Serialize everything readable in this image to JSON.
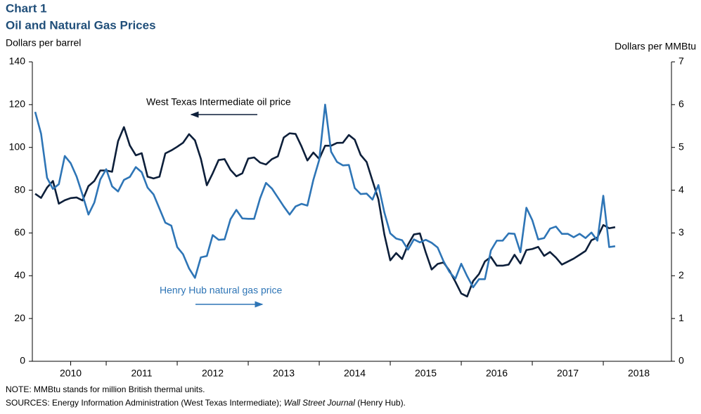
{
  "chart_data": {
    "type": "line",
    "title": "Chart 1",
    "subtitle": "Oil and Natural Gas Prices",
    "y_label": "Dollars per barrel",
    "y2_label": "Dollars per MMBtu",
    "annotations": [
      "West Texas Intermediate  oil price",
      "Henry Hub  natural  gas price"
    ],
    "note": "NOTE: MMBtu stands for million British thermal units.",
    "sources": [
      "SOURCES: Energy Information  Administration (West Texas Intermediate); ",
      "Wall Street Journal",
      " (Henry Hub)."
    ],
    "xlim": [
      2009.96,
      2018.96
    ],
    "xticks": [
      {
        "value": 2010.5,
        "label": "2010"
      },
      {
        "value": 2011.5,
        "label": "2011"
      },
      {
        "value": 2012.5,
        "label": "2012"
      },
      {
        "value": 2013.5,
        "label": "2013"
      },
      {
        "value": 2014.5,
        "label": "2014"
      },
      {
        "value": 2015.5,
        "label": "2015"
      },
      {
        "value": 2016.5,
        "label": "2016"
      },
      {
        "value": 2017.5,
        "label": "2017"
      },
      {
        "value": 2018.5,
        "label": "2018"
      }
    ],
    "ylim": [
      0,
      140
    ],
    "yticks": [
      0,
      20,
      40,
      60,
      80,
      100,
      120,
      140
    ],
    "y2lim": [
      0,
      7
    ],
    "y2ticks": [
      0,
      1,
      2,
      3,
      4,
      5,
      6,
      7
    ],
    "x": [
      2010,
      2010.083,
      2010.167,
      2010.25,
      2010.333,
      2010.417,
      2010.5,
      2010.583,
      2010.667,
      2010.75,
      2010.833,
      2010.917,
      2011,
      2011.083,
      2011.167,
      2011.25,
      2011.333,
      2011.417,
      2011.5,
      2011.583,
      2011.667,
      2011.75,
      2011.833,
      2011.917,
      2012,
      2012.083,
      2012.167,
      2012.25,
      2012.333,
      2012.417,
      2012.5,
      2012.583,
      2012.667,
      2012.75,
      2012.833,
      2012.917,
      2013,
      2013.083,
      2013.167,
      2013.25,
      2013.333,
      2013.417,
      2013.5,
      2013.583,
      2013.667,
      2013.75,
      2013.833,
      2013.917,
      2014,
      2014.083,
      2014.167,
      2014.25,
      2014.333,
      2014.417,
      2014.5,
      2014.583,
      2014.667,
      2014.75,
      2014.833,
      2014.917,
      2015,
      2015.083,
      2015.167,
      2015.25,
      2015.333,
      2015.417,
      2015.5,
      2015.583,
      2015.667,
      2015.75,
      2015.833,
      2015.917,
      2016,
      2016.083,
      2016.167,
      2016.25,
      2016.333,
      2016.417,
      2016.5,
      2016.583,
      2016.667,
      2016.75,
      2016.833,
      2016.917,
      2017,
      2017.083,
      2017.167,
      2017.25,
      2017.333,
      2017.417,
      2017.5,
      2017.583,
      2017.667,
      2017.75,
      2017.833,
      2017.917,
      2018,
      2018.083,
      2018.167
    ],
    "series": [
      {
        "name": "West Texas Intermediate oil price",
        "color": "#0d1f3a",
        "values": [
          78.3,
          76.4,
          81.2,
          84.3,
          73.7,
          75.3,
          76.3,
          76.6,
          75.2,
          81.9,
          84.3,
          89.2,
          89.2,
          88.6,
          102.9,
          109.5,
          100.9,
          96.3,
          97.3,
          86.3,
          85.5,
          86.3,
          97.2,
          98.6,
          100.3,
          102.2,
          106.2,
          103.3,
          94.7,
          82.3,
          87.9,
          94.1,
          94.5,
          89.5,
          86.5,
          87.9,
          94.8,
          95.3,
          92.9,
          92.0,
          94.5,
          95.8,
          104.6,
          106.6,
          106.3,
          100.5,
          93.9,
          97.6,
          94.6,
          100.8,
          100.8,
          102.1,
          102.2,
          105.8,
          103.6,
          96.5,
          93.2,
          84.4,
          75.8,
          59.3,
          47.2,
          50.6,
          47.8,
          54.5,
          59.3,
          59.8,
          50.9,
          42.9,
          45.5,
          46.2,
          42.4,
          37.2,
          31.7,
          30.3,
          37.5,
          40.8,
          46.7,
          48.8,
          44.7,
          44.7,
          45.2,
          49.8,
          45.7,
          52.0,
          52.5,
          53.5,
          49.3,
          51.1,
          48.5,
          45.2,
          46.6,
          48.0,
          49.8,
          51.6,
          56.6,
          57.9,
          63.7,
          62.2,
          62.7
        ]
      },
      {
        "name": "Henry Hub natural gas price",
        "color": "#2e75b6",
        "axis": "y2",
        "values": [
          5.83,
          5.32,
          4.29,
          4.03,
          4.14,
          4.8,
          4.63,
          4.32,
          3.89,
          3.43,
          3.71,
          4.25,
          4.49,
          4.09,
          3.97,
          4.24,
          4.31,
          4.54,
          4.42,
          4.06,
          3.9,
          3.57,
          3.24,
          3.17,
          2.67,
          2.5,
          2.17,
          1.95,
          2.43,
          2.46,
          2.95,
          2.84,
          2.85,
          3.32,
          3.54,
          3.34,
          3.33,
          3.33,
          3.81,
          4.17,
          4.04,
          3.83,
          3.62,
          3.43,
          3.62,
          3.68,
          3.64,
          4.24,
          4.71,
          6.0,
          4.9,
          4.66,
          4.58,
          4.59,
          4.05,
          3.91,
          3.92,
          3.78,
          4.12,
          3.48,
          2.99,
          2.87,
          2.83,
          2.61,
          2.85,
          2.78,
          2.84,
          2.77,
          2.66,
          2.34,
          2.09,
          1.93,
          2.28,
          1.99,
          1.73,
          1.92,
          1.92,
          2.59,
          2.82,
          2.82,
          2.99,
          2.98,
          2.55,
          3.59,
          3.3,
          2.85,
          2.88,
          3.1,
          3.15,
          2.98,
          2.98,
          2.9,
          2.98,
          2.88,
          3.01,
          2.82,
          3.87,
          2.67,
          2.69
        ]
      }
    ]
  }
}
